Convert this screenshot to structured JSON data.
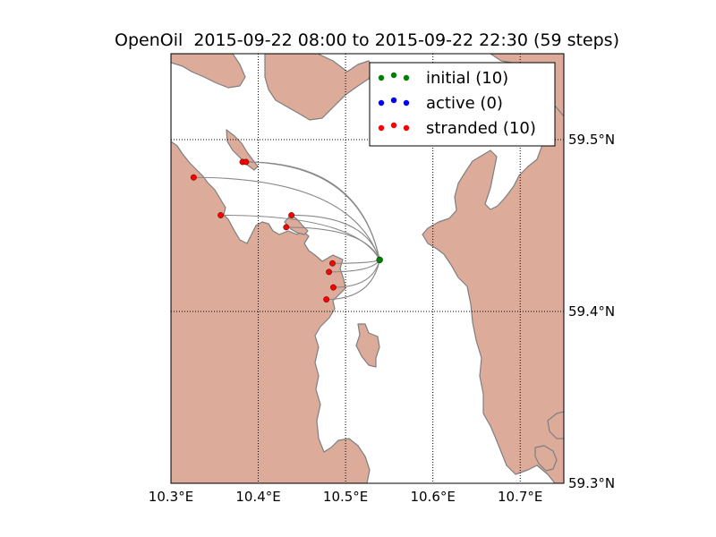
{
  "title": "OpenOil  2015-09-22 08:00 to 2015-09-22 22:30 (59 steps)",
  "colors": {
    "land": "#dcab9a",
    "coast": "#7f7f7f",
    "trajectory": "#888888",
    "initial": "#008000",
    "active": "#0000ff",
    "stranded": "#ff0000"
  },
  "map": {
    "lon_range": [
      10.3,
      10.75
    ],
    "lat_range": [
      59.3,
      59.55
    ],
    "lon_ticks": [
      {
        "value": 10.3,
        "label": "10.3°E"
      },
      {
        "value": 10.4,
        "label": "10.4°E"
      },
      {
        "value": 10.5,
        "label": "10.5°E"
      },
      {
        "value": 10.6,
        "label": "10.6°E"
      },
      {
        "value": 10.7,
        "label": "10.7°E"
      }
    ],
    "lat_ticks": [
      {
        "value": 59.3,
        "label": "59.3°N"
      },
      {
        "value": 59.4,
        "label": "59.4°N"
      },
      {
        "value": 59.5,
        "label": "59.5°N"
      }
    ],
    "grid": "dotted"
  },
  "legend": {
    "placement": "top-right",
    "entries": [
      {
        "label": "initial (10)",
        "color_key": "initial"
      },
      {
        "label": "active (0)",
        "color_key": "active"
      },
      {
        "label": "stranded (10)",
        "color_key": "stranded"
      }
    ]
  },
  "release_point": {
    "lon": 10.539,
    "lat": 59.43
  },
  "stranded_points": [
    {
      "lon": 10.382,
      "lat": 59.487
    },
    {
      "lon": 10.386,
      "lat": 59.487
    },
    {
      "lon": 10.326,
      "lat": 59.478
    },
    {
      "lon": 10.357,
      "lat": 59.456
    },
    {
      "lon": 10.438,
      "lat": 59.456
    },
    {
      "lon": 10.432,
      "lat": 59.449
    },
    {
      "lon": 10.485,
      "lat": 59.428
    },
    {
      "lon": 10.481,
      "lat": 59.423
    },
    {
      "lon": 10.486,
      "lat": 59.414
    },
    {
      "lon": 10.478,
      "lat": 59.407
    }
  ]
}
